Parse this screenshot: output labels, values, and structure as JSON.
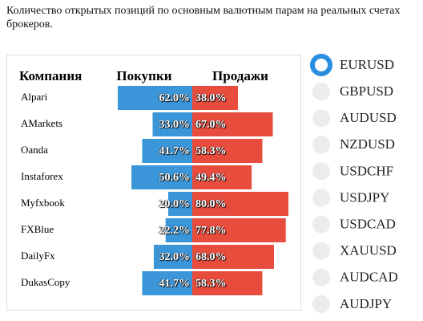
{
  "title": "Количество открытых позиций по основным валютным парам на реальных счетах брокеров.",
  "chart_data": {
    "type": "diverging-bar",
    "category_label": "Компания",
    "categories": [
      "Alpari",
      "AMarkets",
      "Oanda",
      "Instaforex",
      "Myfxbook",
      "FXBlue",
      "DailyFx",
      "DukasCopy"
    ],
    "xlim": [
      0,
      100
    ],
    "series": [
      {
        "name": "Покупки",
        "color": "#3a96d8",
        "values": [
          62.0,
          33.0,
          41.7,
          50.6,
          20.0,
          22.2,
          32.0,
          41.7
        ],
        "value_labels": [
          "62.0%",
          "33.0%",
          "41.7%",
          "50.6%",
          "20.0%",
          "22.2%",
          "32.0%",
          "41.7%"
        ]
      },
      {
        "name": "Продажи",
        "color": "#e84c3d",
        "values": [
          38.0,
          67.0,
          58.3,
          49.4,
          80.0,
          77.8,
          68.0,
          58.3
        ],
        "value_labels": [
          "38.0%",
          "67.0%",
          "58.3%",
          "49.4%",
          "80.0%",
          "77.8%",
          "68.0%",
          "58.3%"
        ]
      }
    ]
  },
  "currency_pairs": [
    "EURUSD",
    "GBPUSD",
    "AUDUSD",
    "NZDUSD",
    "USDCHF",
    "USDJPY",
    "USDCAD",
    "XAUUSD",
    "AUDCAD",
    "AUDJPY"
  ],
  "selected_index": 0
}
